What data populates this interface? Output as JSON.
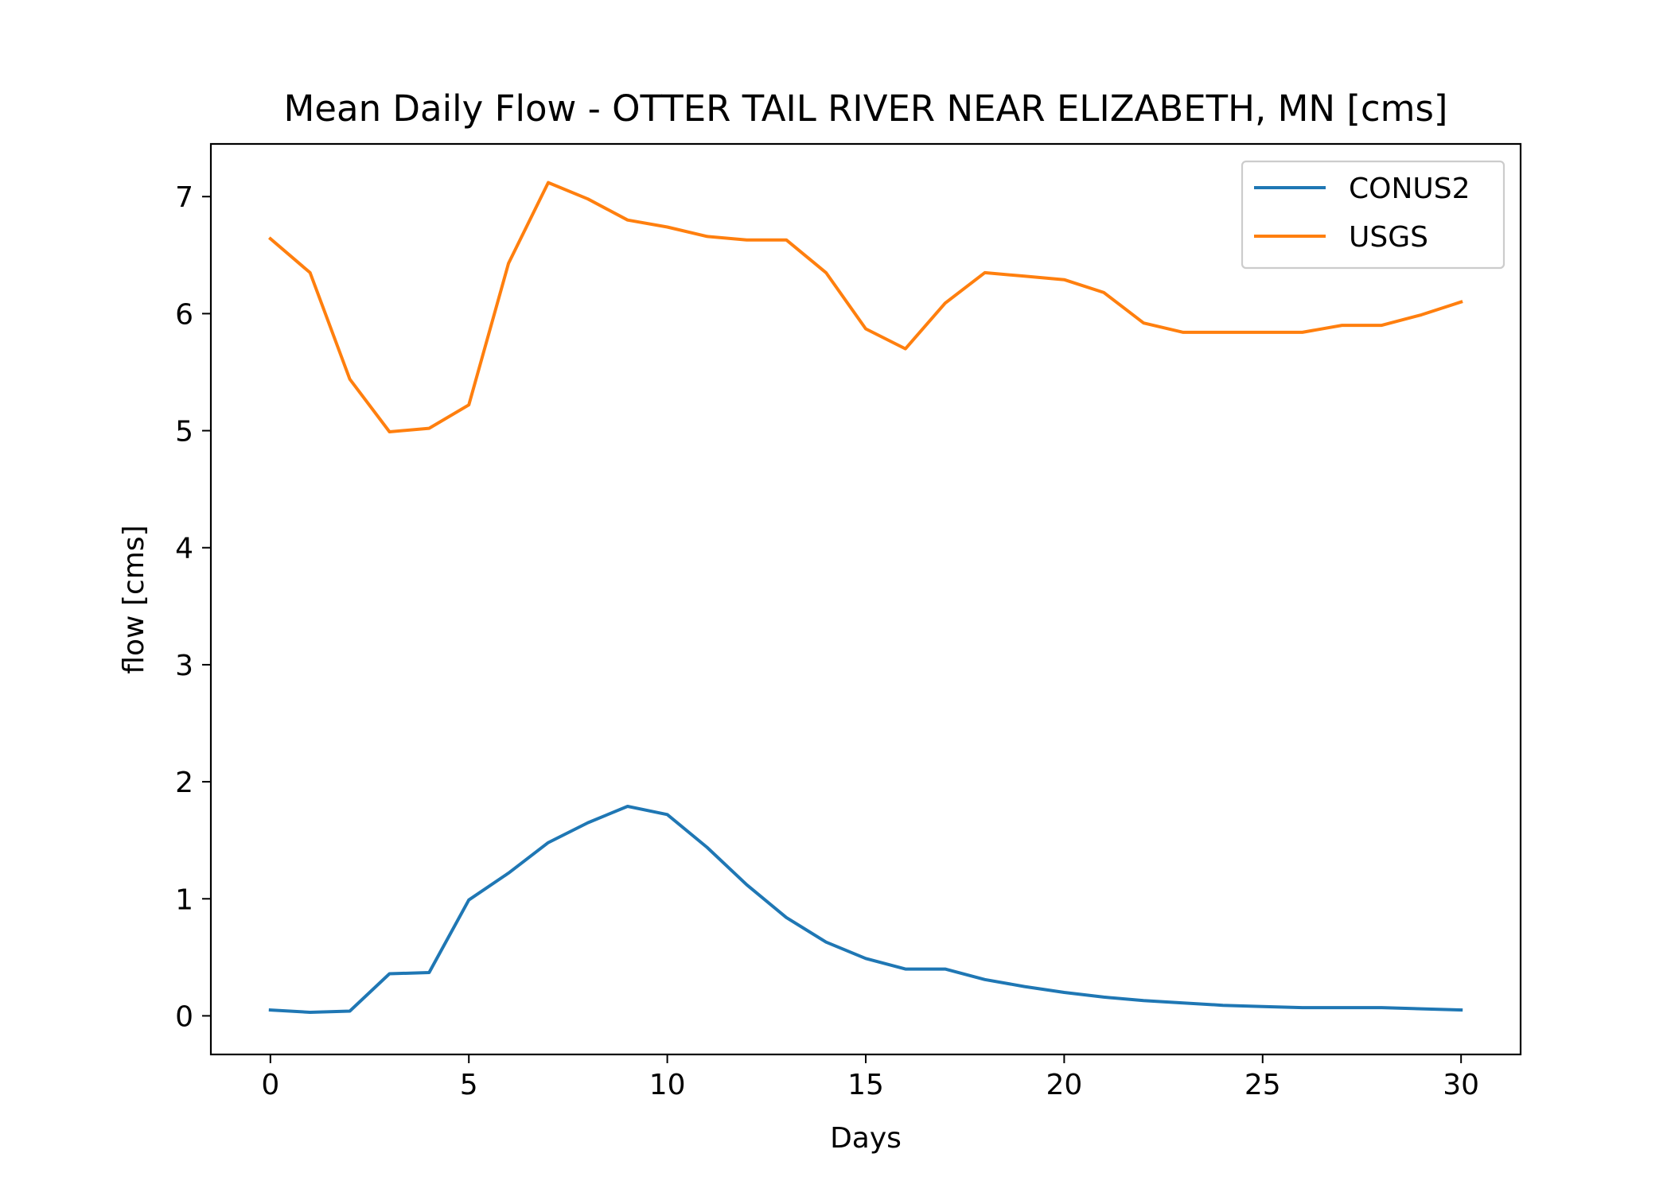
{
  "chart_data": {
    "type": "line",
    "title": "Mean Daily Flow - OTTER TAIL RIVER NEAR ELIZABETH, MN [cms]",
    "xlabel": "Days",
    "ylabel": "flow [cms]",
    "xlim": [
      -1.5,
      31.5
    ],
    "ylim": [
      -0.33,
      7.45
    ],
    "xticks": [
      0,
      5,
      10,
      15,
      20,
      25,
      30
    ],
    "xtick_labels": [
      "0",
      "5",
      "10",
      "15",
      "20",
      "25",
      "30"
    ],
    "yticks": [
      0,
      1,
      2,
      3,
      4,
      5,
      6,
      7
    ],
    "ytick_labels": [
      "0",
      "1",
      "2",
      "3",
      "4",
      "5",
      "6",
      "7"
    ],
    "grid": false,
    "legend_position": "top-right",
    "x": [
      0,
      1,
      2,
      3,
      4,
      5,
      6,
      7,
      8,
      9,
      10,
      11,
      12,
      13,
      14,
      15,
      16,
      17,
      18,
      19,
      20,
      21,
      22,
      23,
      24,
      25,
      26,
      27,
      28,
      29,
      30
    ],
    "series": [
      {
        "name": "CONUS2",
        "color": "#1f77b4",
        "values": [
          0.05,
          0.03,
          0.04,
          0.36,
          0.37,
          0.99,
          1.22,
          1.48,
          1.65,
          1.79,
          1.72,
          1.44,
          1.12,
          0.84,
          0.63,
          0.49,
          0.4,
          0.4,
          0.31,
          0.25,
          0.2,
          0.16,
          0.13,
          0.11,
          0.09,
          0.08,
          0.07,
          0.07,
          0.07,
          0.06,
          0.05
        ]
      },
      {
        "name": "USGS",
        "color": "#ff7f0e",
        "values": [
          6.64,
          6.35,
          5.44,
          4.99,
          5.02,
          5.22,
          6.43,
          7.12,
          6.98,
          6.8,
          6.74,
          6.66,
          6.63,
          6.63,
          6.35,
          5.87,
          5.7,
          6.09,
          6.35,
          6.32,
          6.29,
          6.18,
          5.92,
          5.84,
          5.84,
          5.84,
          5.84,
          5.9,
          5.9,
          5.99,
          6.1
        ]
      }
    ]
  }
}
